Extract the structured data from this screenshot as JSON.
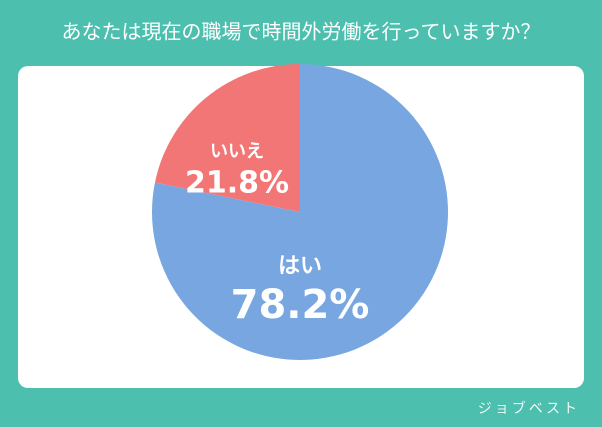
{
  "chart_data": {
    "type": "pie",
    "title": "あなたは現在の職場で時間外労働を行っていますか？",
    "categories": [
      "はい",
      "いいえ"
    ],
    "values": [
      78.2,
      21.8
    ],
    "value_labels": [
      "78.2%",
      "21.8%"
    ],
    "colors": [
      "#78a6e1",
      "#f27676"
    ]
  },
  "watermark": "ジョブベスト"
}
